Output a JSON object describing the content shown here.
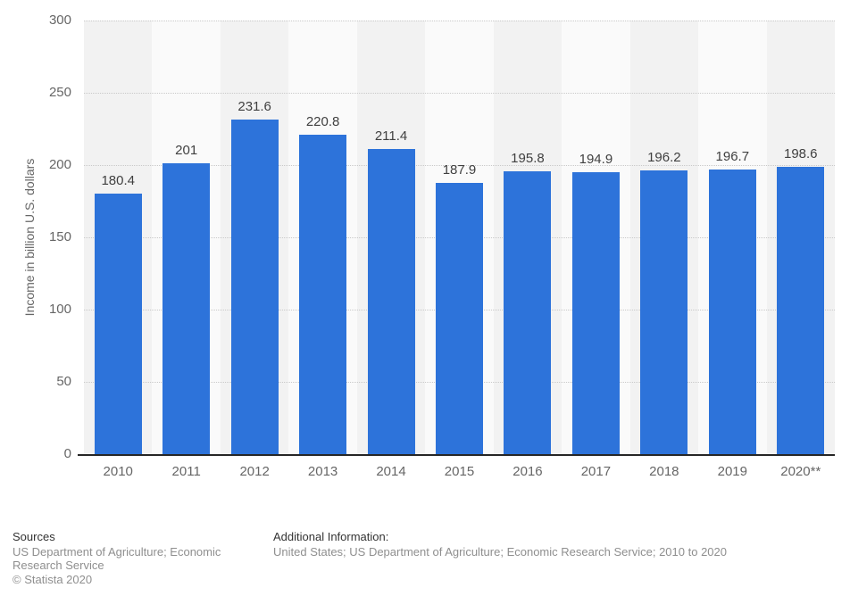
{
  "chart_data": {
    "type": "bar",
    "title": "",
    "categories": [
      "2010",
      "2011",
      "2012",
      "2013",
      "2014",
      "2015",
      "2016",
      "2017",
      "2018",
      "2019",
      "2020**"
    ],
    "values": [
      180.4,
      201,
      231.6,
      220.8,
      211.4,
      187.9,
      195.8,
      194.9,
      196.2,
      196.7,
      198.6
    ],
    "value_labels": [
      "180.4",
      "201",
      "231.6",
      "220.8",
      "211.4",
      "187.9",
      "195.8",
      "194.9",
      "196.2",
      "196.7",
      "198.6"
    ],
    "xlabel": "",
    "ylabel": "Income in billion U.S. dollars",
    "ylim": [
      0,
      300
    ],
    "yticks": [
      0,
      50,
      100,
      150,
      200,
      250,
      300
    ],
    "grid": "horizontal-dotted",
    "legend": "none",
    "bar_color": "#2d73da",
    "band_color_dark": "#f2f2f2",
    "band_color_light": "#fafafa",
    "axis_line_color": "#262626",
    "tick_label_color": "#666666",
    "value_label_color": "#404040"
  },
  "footer": {
    "sources_heading": "Sources",
    "sources_text": "US Department of Agriculture; Economic Research Service",
    "copyright": "© Statista 2020",
    "additional_heading": "Additional Information:",
    "additional_text": "United States; US Department of Agriculture; Economic Research Service; 2010 to 2020"
  }
}
